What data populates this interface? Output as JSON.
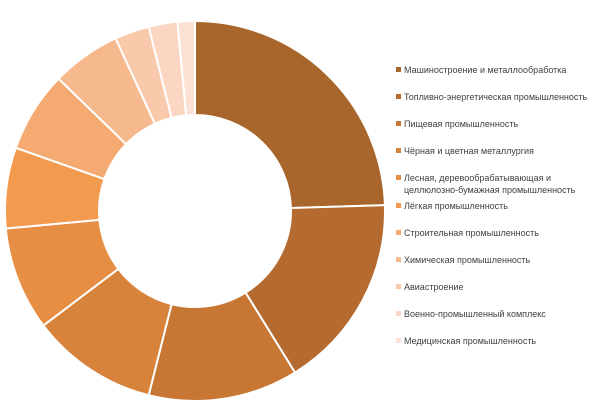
{
  "chart_data": {
    "type": "pie",
    "variant": "donut",
    "title": "",
    "legend_position": "right",
    "categories": [
      "Машиностроение и металлообработка",
      "Топливно-энергетическая промышленность",
      "Пищевая промышленность",
      "Чёрная и цветная металлургия",
      "Лесная, деревообрабатывающая и целлюлозно-бумажная промышленность",
      "Лёгкая промышленность",
      "Строительная промышленность",
      "Химическая промышленность",
      "Авиастроение",
      "Военно-промышленный комплекс",
      "Медицинская промышленность"
    ],
    "values": [
      25,
      17,
      13,
      11,
      9,
      7,
      7,
      6,
      3,
      2.5,
      1.5
    ],
    "colors": [
      "#A8662D",
      "#B56B2F",
      "#C77634",
      "#D7833C",
      "#E58E44",
      "#F29A4D",
      "#F4AA71",
      "#F6B88D",
      "#F9C9AB",
      "#FBD6C2",
      "#FCE1D5"
    ]
  }
}
